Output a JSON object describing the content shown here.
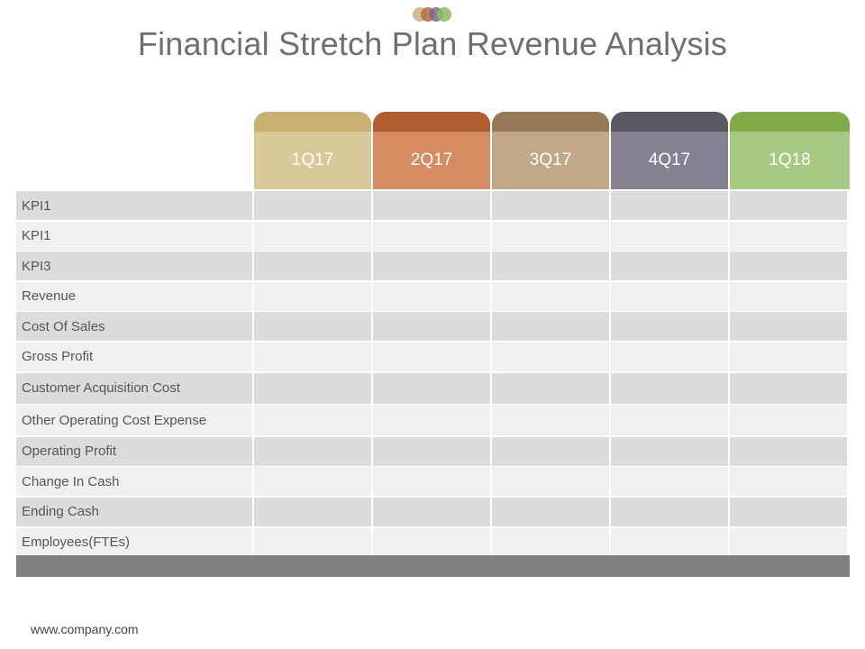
{
  "title": "Financial Stretch Plan Revenue Analysis",
  "logo": {
    "icon": "overlapping-circles-icon",
    "colors": [
      "#c8b27a",
      "#b86a3c",
      "#7a6a8a",
      "#8fb864"
    ]
  },
  "columns": [
    {
      "label": "1Q17",
      "cap_color": "#c8b073",
      "body_color": "#d8c89a"
    },
    {
      "label": "2Q17",
      "cap_color": "#b05e30",
      "body_color": "#d58c62"
    },
    {
      "label": "3Q17",
      "cap_color": "#977855",
      "body_color": "#c0a889"
    },
    {
      "label": "4Q17",
      "cap_color": "#5a5662",
      "body_color": "#858391"
    },
    {
      "label": "1Q18",
      "cap_color": "#7fac49",
      "body_color": "#a8c983"
    }
  ],
  "rows": [
    {
      "label": "KPI1"
    },
    {
      "label": "KPI1"
    },
    {
      "label": "KPI3"
    },
    {
      "label": "Revenue"
    },
    {
      "label": "Cost Of Sales"
    },
    {
      "label": "Gross Profit"
    },
    {
      "label": "Customer Acquisition Cost"
    },
    {
      "label": "Other Operating Cost Expense"
    },
    {
      "label": "Operating Profit"
    },
    {
      "label": "Change In Cash"
    },
    {
      "label": "Ending Cash"
    },
    {
      "label": "Employees(FTEs)"
    }
  ],
  "footer": {
    "url": "www.company.com",
    "bar_color": "#808080"
  }
}
